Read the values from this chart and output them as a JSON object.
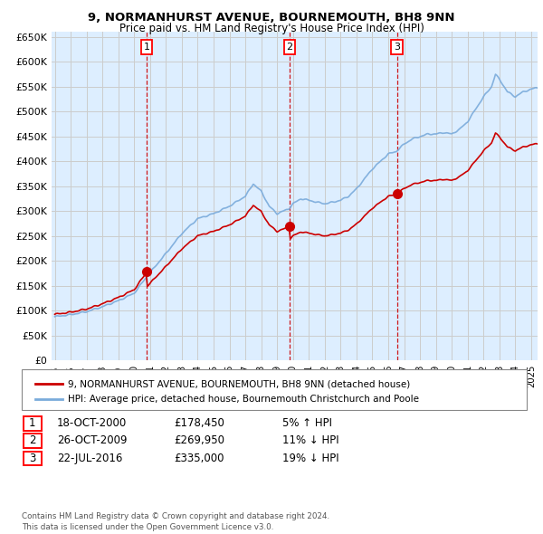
{
  "title_line1": "9, NORMANHURST AVENUE, BOURNEMOUTH, BH8 9NN",
  "title_line2": "Price paid vs. HM Land Registry's House Price Index (HPI)",
  "ylim": [
    0,
    660000
  ],
  "yticks": [
    0,
    50000,
    100000,
    150000,
    200000,
    250000,
    300000,
    350000,
    400000,
    450000,
    500000,
    550000,
    600000,
    650000
  ],
  "ytick_labels": [
    "£0",
    "£50K",
    "£100K",
    "£150K",
    "£200K",
    "£250K",
    "£300K",
    "£350K",
    "£400K",
    "£450K",
    "£500K",
    "£550K",
    "£600K",
    "£650K"
  ],
  "hpi_color": "#7aabdb",
  "price_color": "#cc0000",
  "marker_color": "#cc0000",
  "vline_color": "#cc0000",
  "grid_color": "#cccccc",
  "bg_color": "#ddeeff",
  "sale_prices": [
    178450,
    269950,
    335000
  ],
  "sale_labels": [
    "1",
    "2",
    "3"
  ],
  "legend_label_price": "9, NORMANHURST AVENUE, BOURNEMOUTH, BH8 9NN (detached house)",
  "legend_label_hpi": "HPI: Average price, detached house, Bournemouth Christchurch and Poole",
  "table_entries": [
    {
      "label": "1",
      "date": "18-OCT-2000",
      "price": "£178,450",
      "change": "5% ↑ HPI"
    },
    {
      "label": "2",
      "date": "26-OCT-2009",
      "price": "£269,950",
      "change": "11% ↓ HPI"
    },
    {
      "label": "3",
      "date": "22-JUL-2016",
      "price": "£335,000",
      "change": "19% ↓ HPI"
    }
  ],
  "footnote": "Contains HM Land Registry data © Crown copyright and database right 2024.\nThis data is licensed under the Open Government Licence v3.0.",
  "xstart": 1994.8,
  "xend": 2025.4
}
